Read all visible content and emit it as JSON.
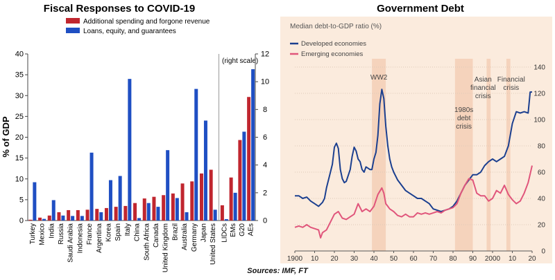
{
  "sources": "Sources: IMF, FT",
  "chart_data": [
    {
      "type": "bar",
      "title": "Fiscal Responses to COVID-19",
      "ylabel": "% of GDP",
      "ylim": [
        0,
        40
      ],
      "yticks": [
        0,
        5,
        10,
        15,
        20,
        25,
        30,
        35,
        40
      ],
      "right_ylim": [
        0,
        12
      ],
      "right_yticks": [
        0,
        2,
        4,
        6,
        8,
        10,
        12
      ],
      "right_scale_label": "(right scale)",
      "legend_position": "top",
      "colors": {
        "spending": "#c0262f",
        "loans": "#1f4fc3"
      },
      "categories": [
        "Turkey",
        "Mexico",
        "India",
        "Russia",
        "Saudi Arabia",
        "Indonesia",
        "France",
        "Argentina",
        "Korea",
        "Spain",
        "Italy",
        "China",
        "South Africa",
        "Canada",
        "United Kingdom",
        "Brazil",
        "Australia",
        "Germany",
        "Japan",
        "United States"
      ],
      "series": [
        {
          "name": "Additional spending and forgone revenue",
          "values": [
            0.2,
            0.7,
            1.2,
            2.0,
            2.5,
            2.5,
            2.6,
            2.8,
            3.0,
            3.3,
            3.5,
            4.2,
            5.3,
            5.7,
            6.1,
            6.5,
            8.9,
            9.4,
            11.3,
            12.2
          ]
        },
        {
          "name": "Loans, equity, and guarantees",
          "values": [
            9.2,
            0.4,
            4.9,
            1.2,
            1.1,
            1.1,
            16.3,
            2.0,
            9.7,
            10.7,
            34.0,
            0.6,
            4.2,
            3.3,
            16.9,
            5.4,
            2.0,
            31.6,
            24.0,
            2.6
          ]
        }
      ],
      "right_categories": [
        "LIDCs",
        "EMs",
        "G20",
        "AEs"
      ],
      "right_series": [
        {
          "name": "Additional spending and forgone revenue",
          "values": [
            1.1,
            3.1,
            5.8,
            8.9
          ]
        },
        {
          "name": "Loans, equity, and guarantees",
          "values": [
            0.1,
            2.0,
            6.4,
            10.9
          ]
        }
      ]
    },
    {
      "type": "line",
      "title": "Government Debt",
      "subtitle": "Median debt-to-GDP ratio (%)",
      "x_ticks": [
        "1900",
        "10",
        "20",
        "30",
        "40",
        "50",
        "60",
        "70",
        "80",
        "90",
        "2000",
        "10",
        "20"
      ],
      "xlim": [
        1900,
        2020
      ],
      "ylim": [
        0,
        140
      ],
      "yticks": [
        0,
        20,
        40,
        60,
        80,
        100,
        120,
        140
      ],
      "legend_position": "top-left",
      "background": "#fbebdd",
      "shaded_periods": [
        {
          "label": "WW2",
          "start": 1939,
          "end": 1946
        },
        {
          "label": "1980s debt crisis",
          "start": 1981,
          "end": 1990
        },
        {
          "label": "Asian financial crisis",
          "start": 1997,
          "end": 1999
        },
        {
          "label": "Financial crisis",
          "start": 2007,
          "end": 2009
        }
      ],
      "series": [
        {
          "name": "Developed economies",
          "color": "#1b3f8f",
          "x": [
            1900,
            1902,
            1904,
            1906,
            1908,
            1910,
            1912,
            1914,
            1915,
            1916,
            1918,
            1919,
            1920,
            1921,
            1922,
            1923,
            1924,
            1925,
            1926,
            1928,
            1929,
            1930,
            1931,
            1932,
            1933,
            1934,
            1935,
            1936,
            1937,
            1938,
            1939,
            1940,
            1941,
            1942,
            1943,
            1944,
            1945,
            1946,
            1947,
            1948,
            1949,
            1950,
            1952,
            1954,
            1956,
            1958,
            1960,
            1962,
            1964,
            1966,
            1968,
            1970,
            1972,
            1974,
            1976,
            1978,
            1980,
            1982,
            1984,
            1986,
            1988,
            1990,
            1992,
            1994,
            1996,
            1998,
            2000,
            2002,
            2004,
            2006,
            2008,
            2010,
            2012,
            2014,
            2016,
            2018,
            2019,
            2020
          ],
          "y": [
            42,
            42,
            40,
            41,
            38,
            36,
            34,
            37,
            40,
            48,
            60,
            66,
            79,
            82,
            78,
            62,
            55,
            52,
            53,
            62,
            72,
            79,
            76,
            70,
            68,
            62,
            60,
            64,
            63,
            62,
            62,
            70,
            75,
            88,
            112,
            123,
            116,
            95,
            80,
            70,
            64,
            60,
            54,
            50,
            46,
            44,
            42,
            40,
            40,
            38,
            36,
            32,
            31,
            30,
            31,
            32,
            34,
            38,
            44,
            50,
            54,
            58,
            58,
            60,
            65,
            68,
            70,
            68,
            70,
            72,
            80,
            97,
            106,
            105,
            106,
            105,
            121,
            121
          ]
        },
        {
          "name": "Emerging economies",
          "color": "#e0557b",
          "x": [
            1900,
            1902,
            1904,
            1906,
            1908,
            1910,
            1912,
            1913,
            1914,
            1916,
            1918,
            1920,
            1922,
            1924,
            1926,
            1928,
            1930,
            1932,
            1934,
            1936,
            1938,
            1940,
            1942,
            1944,
            1945,
            1946,
            1947,
            1948,
            1950,
            1952,
            1954,
            1956,
            1958,
            1960,
            1962,
            1964,
            1966,
            1968,
            1970,
            1972,
            1974,
            1976,
            1978,
            1980,
            1982,
            1984,
            1986,
            1988,
            1990,
            1992,
            1994,
            1996,
            1998,
            2000,
            2002,
            2004,
            2006,
            2008,
            2010,
            2012,
            2014,
            2016,
            2018,
            2020
          ],
          "y": [
            18,
            19,
            18,
            20,
            18,
            17,
            16,
            10,
            14,
            16,
            22,
            28,
            30,
            25,
            24,
            26,
            28,
            36,
            30,
            32,
            30,
            34,
            43,
            48,
            44,
            36,
            34,
            32,
            30,
            27,
            26,
            28,
            26,
            26,
            29,
            28,
            29,
            28,
            29,
            30,
            29,
            31,
            32,
            33,
            36,
            44,
            50,
            55,
            54,
            44,
            42,
            42,
            38,
            40,
            46,
            44,
            50,
            43,
            39,
            36,
            38,
            44,
            52,
            65
          ]
        }
      ]
    }
  ]
}
